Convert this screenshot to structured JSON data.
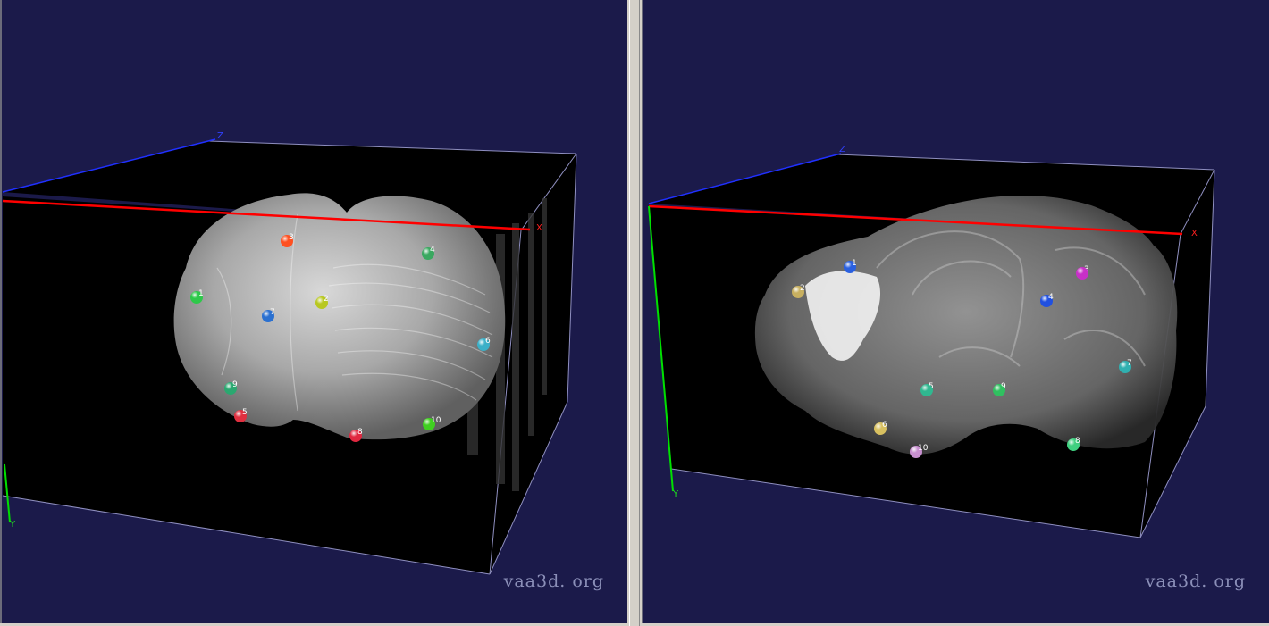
{
  "viewers": [
    {
      "id": "left",
      "watermark": "vaa3d. org",
      "axes": {
        "x": "X",
        "y": "Y",
        "z": "Z"
      },
      "axis_colors": {
        "x": "#ff0000",
        "y": "#00e000",
        "z": "#2030ff"
      },
      "markers": [
        {
          "label": "1",
          "color": "#2ec84a"
        },
        {
          "label": "2",
          "color": "#b8c820"
        },
        {
          "label": "3",
          "color": "#ff5020"
        },
        {
          "label": "4",
          "color": "#3aa860"
        },
        {
          "label": "5",
          "color": "#e03040"
        },
        {
          "label": "6",
          "color": "#3ab0c8"
        },
        {
          "label": "7",
          "color": "#2a70d0"
        },
        {
          "label": "8",
          "color": "#e02840"
        },
        {
          "label": "9",
          "color": "#2aa870"
        },
        {
          "label": "10",
          "color": "#40d020"
        }
      ]
    },
    {
      "id": "right",
      "watermark": "vaa3d. org",
      "axes": {
        "x": "X",
        "y": "Y",
        "z": "Z"
      },
      "axis_colors": {
        "x": "#ff0000",
        "y": "#00e000",
        "z": "#2030ff"
      },
      "markers": [
        {
          "label": "1",
          "color": "#2a60e0"
        },
        {
          "label": "2",
          "color": "#c8b060"
        },
        {
          "label": "3",
          "color": "#c830c8"
        },
        {
          "label": "4",
          "color": "#2050e0"
        },
        {
          "label": "5",
          "color": "#30b890"
        },
        {
          "label": "6",
          "color": "#d8c060"
        },
        {
          "label": "7",
          "color": "#30b0b0"
        },
        {
          "label": "8",
          "color": "#40d080"
        },
        {
          "label": "9",
          "color": "#30c060"
        },
        {
          "label": "10",
          "color": "#c890d0"
        }
      ]
    }
  ]
}
